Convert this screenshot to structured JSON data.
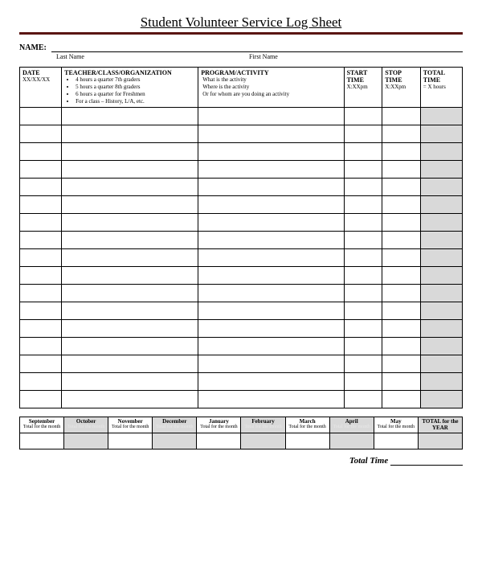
{
  "title": "Student Volunteer Service Log Sheet",
  "name_label": "NAME:",
  "name_sub_last": "Last Name",
  "name_sub_first": "First Name",
  "columns": {
    "date": "DATE",
    "org": "TEACHER/CLASS/ORGANIZATION",
    "prog": "PROGRAM/ACTIVITY",
    "start": "START TIME",
    "stop": "STOP TIME",
    "total": "TOTAL TIME"
  },
  "header_hints": {
    "date": "XX/XX/XX",
    "org_items": [
      "4 hours a quarter  7th graders",
      "5 hours a quarter 8th graders",
      "6 hours a quarter for Freshmen",
      "For a class – History, L/A, etc."
    ],
    "prog_lines": [
      "What is the activity",
      "Where is the activity",
      "Or for whom are you doing an activity"
    ],
    "start": "X:XXpm",
    "stop": "X:XXpm",
    "total": "= X hours"
  },
  "blank_rows": 17,
  "months": [
    "September",
    "October",
    "November",
    "December",
    "January",
    "February",
    "March",
    "April",
    "May"
  ],
  "month_sub_plain": "Total for the month",
  "month_sub_shaded": "Total for the month",
  "year_total_label": "TOTAL for the YEAR",
  "total_time_label": "Total Time",
  "colors": {
    "rule": "#5a1512",
    "shade": "#d9d9d9",
    "border": "#000000",
    "bg": "#ffffff"
  }
}
